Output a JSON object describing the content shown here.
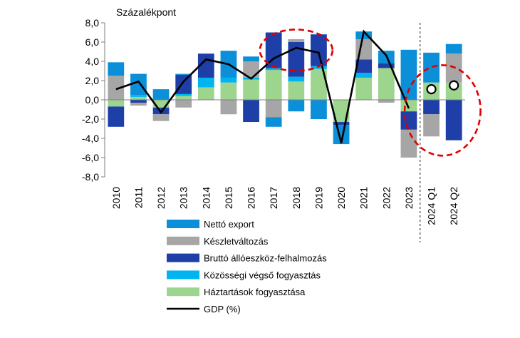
{
  "chart_data": {
    "type": "bar",
    "stacked": true,
    "unit_label": "Százalékpont",
    "categories": [
      "2010",
      "2011",
      "2012",
      "2013",
      "2014",
      "2015",
      "2016",
      "2017",
      "2018",
      "2019",
      "2020",
      "2021",
      "2022",
      "2023",
      "2024 Q1",
      "2024 Q2"
    ],
    "ylim": [
      -8,
      8
    ],
    "yticks": [
      "8,0",
      "6,0",
      "4,0",
      "2,0",
      "0,0",
      "-2,0",
      "-4,0",
      "-6,0",
      "-8,0"
    ],
    "grid": false,
    "legend_position": "bottom",
    "series": [
      {
        "name": "Háztartások fogyasztása",
        "color": "#9dd58e",
        "values": [
          -0.7,
          0.3,
          -0.8,
          0.4,
          1.3,
          1.8,
          2.1,
          3.1,
          1.9,
          3.2,
          -2.3,
          2.3,
          3.3,
          -1.2,
          1.8,
          1.8
        ]
      },
      {
        "name": "Közösségi végső fogyasztás",
        "color": "#00b4f0",
        "values": [
          0.0,
          0.2,
          0.0,
          0.2,
          1.0,
          0.5,
          0.2,
          0.2,
          0.5,
          0.3,
          0.0,
          0.5,
          0.0,
          0.0,
          0.0,
          0.0
        ]
      },
      {
        "name": "Bruttó állóeszköz-felhalmozás",
        "color": "#1e3ea8",
        "values": [
          -2.1,
          -0.3,
          -0.7,
          2.0,
          2.5,
          0.0,
          -2.3,
          3.7,
          3.6,
          3.3,
          -0.3,
          1.4,
          0.5,
          -1.9,
          -1.5,
          -4.2
        ]
      },
      {
        "name": "Készletváltozás",
        "color": "#a6a6a6",
        "values": [
          2.5,
          -0.3,
          -0.7,
          -0.8,
          0.0,
          -1.5,
          1.7,
          -1.8,
          0.3,
          0.0,
          0.0,
          2.1,
          -0.3,
          -2.9,
          -2.3,
          3.0
        ]
      },
      {
        "name": "Nettó export",
        "color": "#0a8fd8",
        "values": [
          1.4,
          2.2,
          1.1,
          0.1,
          0.0,
          2.8,
          0.5,
          -1.0,
          -1.2,
          -2.0,
          -2.0,
          0.8,
          1.3,
          5.2,
          3.1,
          1.0
        ]
      }
    ],
    "line_series": {
      "name": "GDP (%)",
      "color": "#000000",
      "values": [
        1.1,
        1.9,
        -1.3,
        1.9,
        4.2,
        3.7,
        2.2,
        4.3,
        5.4,
        4.9,
        -4.5,
        7.1,
        4.6,
        -0.9,
        null,
        null
      ]
    },
    "marker_series": {
      "values": [
        null,
        null,
        null,
        null,
        null,
        null,
        null,
        null,
        null,
        null,
        null,
        null,
        null,
        null,
        1.1,
        1.5
      ],
      "fill": "#ffffff",
      "stroke": "#000000"
    },
    "legend_entries": [
      {
        "label": "Nettó export",
        "color": "#0a8fd8",
        "kind": "rect"
      },
      {
        "label": "Készletváltozás",
        "color": "#a6a6a6",
        "kind": "rect"
      },
      {
        "label": "Bruttó állóeszköz-felhalmozás",
        "color": "#1e3ea8",
        "kind": "rect"
      },
      {
        "label": "Közösségi végső fogyasztás",
        "color": "#00b4f0",
        "kind": "rect"
      },
      {
        "label": "Háztartások fogyasztása",
        "color": "#9dd58e",
        "kind": "rect"
      },
      {
        "label": "GDP (%)",
        "color": "#000000",
        "kind": "line"
      }
    ],
    "annotations": [
      {
        "type": "dashed-ellipse",
        "color": "#e00000",
        "around": [
          "2017",
          "2019"
        ]
      },
      {
        "type": "dashed-ellipse",
        "color": "#e00000",
        "around": [
          "2024 Q1",
          "2024 Q2"
        ]
      }
    ],
    "separator_after": "2023"
  }
}
